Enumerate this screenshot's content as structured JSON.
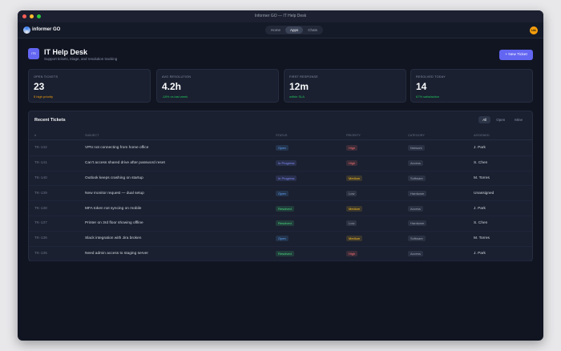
{
  "window": {
    "title": "Informer GO — IT Help Desk"
  },
  "nav": {
    "brand": "informer GO",
    "tabs": [
      "Home",
      "Apps",
      "Chats"
    ],
    "active_tab": 1,
    "avatar": "UA"
  },
  "header": {
    "icon": "ITS",
    "title": "IT Help Desk",
    "subtitle": "Support tickets, triage, and resolution tracking",
    "button": "+ New Ticket"
  },
  "stats": [
    {
      "label": "OPEN TICKETS",
      "value": "23",
      "note": "5 high priority",
      "note_color": "#f59e0b"
    },
    {
      "label": "AVG RESOLUTION",
      "value": "4.2h",
      "note": "-18% vs last week",
      "note_color": "#22c55e"
    },
    {
      "label": "FIRST RESPONSE",
      "value": "12m",
      "note": "within SLA",
      "note_color": "#22c55e"
    },
    {
      "label": "RESOLVED TODAY",
      "value": "14",
      "note": "67% satisfaction",
      "note_color": "#22c55e"
    }
  ],
  "table": {
    "title": "Recent Tickets",
    "filters": [
      "All",
      "Open",
      "Mine"
    ],
    "active_filter": 0,
    "columns": [
      "#",
      "SUBJECT",
      "STATUS",
      "PRIORITY",
      "CATEGORY",
      "ASSIGNED"
    ],
    "rows": [
      {
        "id": "TK-142",
        "subject": "VPN not connecting from home office",
        "status": {
          "text": "Open",
          "color": "#60a5fa"
        },
        "priority": {
          "text": "High",
          "color": "#f87171"
        },
        "category": "Network",
        "assigned": "J. Park"
      },
      {
        "id": "TK-141",
        "subject": "Can't access shared drive after password reset",
        "status": {
          "text": "In Progress",
          "color": "#818cf8"
        },
        "priority": {
          "text": "High",
          "color": "#f87171"
        },
        "category": "Access",
        "assigned": "S. Chen"
      },
      {
        "id": "TK-140",
        "subject": "Outlook keeps crashing on startup",
        "status": {
          "text": "In Progress",
          "color": "#818cf8"
        },
        "priority": {
          "text": "Medium",
          "color": "#fbbf24"
        },
        "category": "Software",
        "assigned": "M. Torres"
      },
      {
        "id": "TK-139",
        "subject": "New monitor request — dual setup",
        "status": {
          "text": "Open",
          "color": "#60a5fa"
        },
        "priority": {
          "text": "Low",
          "color": "#9ca3af"
        },
        "category": "Hardware",
        "assigned": "Unassigned"
      },
      {
        "id": "TK-138",
        "subject": "MFA token not syncing on mobile",
        "status": {
          "text": "Resolved",
          "color": "#4ade80"
        },
        "priority": {
          "text": "Medium",
          "color": "#fbbf24"
        },
        "category": "Access",
        "assigned": "J. Park"
      },
      {
        "id": "TK-137",
        "subject": "Printer on 3rd floor showing offline",
        "status": {
          "text": "Resolved",
          "color": "#4ade80"
        },
        "priority": {
          "text": "Low",
          "color": "#9ca3af"
        },
        "category": "Hardware",
        "assigned": "S. Chen"
      },
      {
        "id": "TK-136",
        "subject": "Slack integration with Jira broken",
        "status": {
          "text": "Open",
          "color": "#60a5fa"
        },
        "priority": {
          "text": "Medium",
          "color": "#fbbf24"
        },
        "category": "Software",
        "assigned": "M. Torres"
      },
      {
        "id": "TK-135",
        "subject": "Need admin access to staging server",
        "status": {
          "text": "Resolved",
          "color": "#4ade80"
        },
        "priority": {
          "text": "High",
          "color": "#f87171"
        },
        "category": "Access",
        "assigned": "J. Park"
      }
    ]
  }
}
